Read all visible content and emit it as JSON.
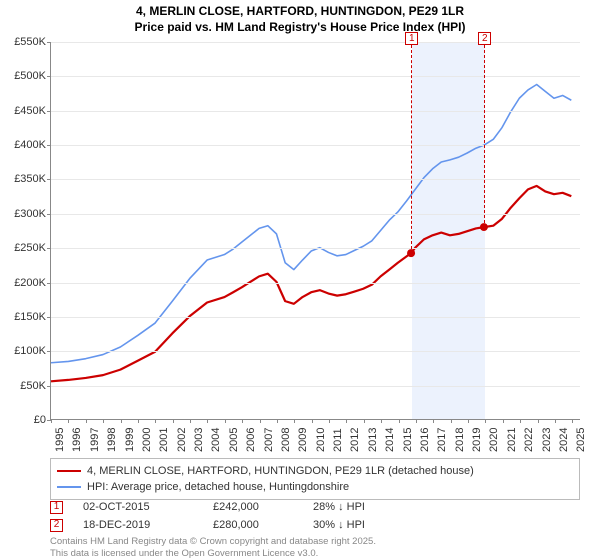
{
  "title_line1": "4, MERLIN CLOSE, HARTFORD, HUNTINGDON, PE29 1LR",
  "title_line2": "Price paid vs. HM Land Registry's House Price Index (HPI)",
  "chart": {
    "type": "line",
    "background_color": "#ffffff",
    "grid_color": "#e8e8e8",
    "axis_color": "#888888",
    "y_axis": {
      "min": 0,
      "max": 550000,
      "step": 50000,
      "labels": [
        "£0",
        "£50K",
        "£100K",
        "£150K",
        "£200K",
        "£250K",
        "£300K",
        "£350K",
        "£400K",
        "£450K",
        "£500K",
        "£550K"
      ]
    },
    "x_axis": {
      "min": 1995,
      "max": 2025.5,
      "labels": [
        "1995",
        "1996",
        "1997",
        "1998",
        "1999",
        "2000",
        "2001",
        "2002",
        "2003",
        "2004",
        "2005",
        "2006",
        "2007",
        "2008",
        "2009",
        "2010",
        "2011",
        "2012",
        "2013",
        "2014",
        "2015",
        "2016",
        "2017",
        "2018",
        "2019",
        "2020",
        "2021",
        "2022",
        "2023",
        "2024",
        "2025"
      ]
    },
    "series": [
      {
        "name": "price_paid",
        "color": "#cc0000",
        "width": 2.2,
        "data": [
          [
            1995,
            55000
          ],
          [
            1996,
            57000
          ],
          [
            1997,
            60000
          ],
          [
            1998,
            64000
          ],
          [
            1999,
            72000
          ],
          [
            2000,
            85000
          ],
          [
            2001,
            98000
          ],
          [
            2002,
            125000
          ],
          [
            2003,
            150000
          ],
          [
            2004,
            170000
          ],
          [
            2005,
            178000
          ],
          [
            2005.5,
            185000
          ],
          [
            2006,
            192000
          ],
          [
            2006.5,
            200000
          ],
          [
            2007,
            208000
          ],
          [
            2007.5,
            212000
          ],
          [
            2008,
            200000
          ],
          [
            2008.5,
            172000
          ],
          [
            2009,
            168000
          ],
          [
            2009.5,
            178000
          ],
          [
            2010,
            185000
          ],
          [
            2010.5,
            188000
          ],
          [
            2011,
            183000
          ],
          [
            2011.5,
            180000
          ],
          [
            2012,
            182000
          ],
          [
            2012.5,
            186000
          ],
          [
            2013,
            190000
          ],
          [
            2013.5,
            196000
          ],
          [
            2014,
            208000
          ],
          [
            2014.5,
            218000
          ],
          [
            2015,
            228000
          ],
          [
            2015.76,
            242000
          ],
          [
            2016,
            250000
          ],
          [
            2016.5,
            262000
          ],
          [
            2017,
            268000
          ],
          [
            2017.5,
            272000
          ],
          [
            2018,
            268000
          ],
          [
            2018.5,
            270000
          ],
          [
            2019,
            274000
          ],
          [
            2019.5,
            278000
          ],
          [
            2019.96,
            280000
          ],
          [
            2020.5,
            282000
          ],
          [
            2021,
            292000
          ],
          [
            2021.5,
            308000
          ],
          [
            2022,
            322000
          ],
          [
            2022.5,
            335000
          ],
          [
            2023,
            340000
          ],
          [
            2023.5,
            332000
          ],
          [
            2024,
            328000
          ],
          [
            2024.5,
            330000
          ],
          [
            2025,
            325000
          ]
        ]
      },
      {
        "name": "hpi",
        "color": "#6495ed",
        "width": 1.6,
        "data": [
          [
            1995,
            82000
          ],
          [
            1996,
            84000
          ],
          [
            1997,
            88000
          ],
          [
            1998,
            94000
          ],
          [
            1999,
            105000
          ],
          [
            2000,
            122000
          ],
          [
            2001,
            140000
          ],
          [
            2002,
            172000
          ],
          [
            2003,
            205000
          ],
          [
            2004,
            232000
          ],
          [
            2005,
            240000
          ],
          [
            2005.5,
            248000
          ],
          [
            2006,
            258000
          ],
          [
            2006.5,
            268000
          ],
          [
            2007,
            278000
          ],
          [
            2007.5,
            282000
          ],
          [
            2008,
            270000
          ],
          [
            2008.5,
            228000
          ],
          [
            2009,
            218000
          ],
          [
            2009.5,
            232000
          ],
          [
            2010,
            245000
          ],
          [
            2010.5,
            250000
          ],
          [
            2011,
            243000
          ],
          [
            2011.5,
            238000
          ],
          [
            2012,
            240000
          ],
          [
            2012.5,
            246000
          ],
          [
            2013,
            252000
          ],
          [
            2013.5,
            260000
          ],
          [
            2014,
            275000
          ],
          [
            2014.5,
            290000
          ],
          [
            2015,
            302000
          ],
          [
            2015.5,
            318000
          ],
          [
            2016,
            335000
          ],
          [
            2016.5,
            352000
          ],
          [
            2017,
            365000
          ],
          [
            2017.5,
            375000
          ],
          [
            2018,
            378000
          ],
          [
            2018.5,
            382000
          ],
          [
            2019,
            388000
          ],
          [
            2019.5,
            395000
          ],
          [
            2020,
            400000
          ],
          [
            2020.5,
            408000
          ],
          [
            2021,
            425000
          ],
          [
            2021.5,
            448000
          ],
          [
            2022,
            468000
          ],
          [
            2022.5,
            480000
          ],
          [
            2023,
            488000
          ],
          [
            2023.5,
            478000
          ],
          [
            2024,
            468000
          ],
          [
            2024.5,
            472000
          ],
          [
            2025,
            465000
          ]
        ]
      }
    ],
    "sale_markers": [
      {
        "label": "1",
        "year": 2015.76,
        "price": 242000
      },
      {
        "label": "2",
        "year": 2019.96,
        "price": 280000
      }
    ],
    "marker_color": "#cc0000",
    "marker_radius": 4,
    "shade_band": {
      "from": 2015.76,
      "to": 2019.96,
      "color": "rgba(100,149,237,0.12)"
    }
  },
  "legend": {
    "items": [
      {
        "color": "#cc0000",
        "width": 2.5,
        "text": "4, MERLIN CLOSE, HARTFORD, HUNTINGDON, PE29 1LR (detached house)"
      },
      {
        "color": "#6495ed",
        "width": 2,
        "text": "HPI: Average price, detached house, Huntingdonshire"
      }
    ]
  },
  "sales": [
    {
      "marker": "1",
      "date": "02-OCT-2015",
      "price": "£242,000",
      "diff": "28% ↓ HPI"
    },
    {
      "marker": "2",
      "date": "18-DEC-2019",
      "price": "£280,000",
      "diff": "30% ↓ HPI"
    }
  ],
  "attribution_line1": "Contains HM Land Registry data © Crown copyright and database right 2025.",
  "attribution_line2": "This data is licensed under the Open Government Licence v3.0."
}
